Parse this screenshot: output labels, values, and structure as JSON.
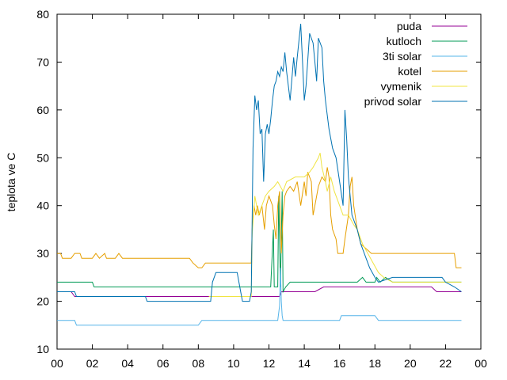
{
  "chart_data": {
    "type": "line",
    "title": "",
    "xlabel": "",
    "ylabel": "teplota ve C",
    "xlim": [
      0,
      24
    ],
    "ylim": [
      10,
      80
    ],
    "x_ticks": [
      "00",
      "02",
      "04",
      "06",
      "08",
      "10",
      "12",
      "14",
      "16",
      "18",
      "20",
      "22",
      "00"
    ],
    "y_ticks": [
      "10",
      "20",
      "30",
      "40",
      "50",
      "60",
      "70",
      "80"
    ],
    "grid": false,
    "legend_position": "top-right",
    "series": [
      {
        "name": "puda",
        "color": "#940094",
        "points": [
          [
            0,
            22
          ],
          [
            0.8,
            22
          ],
          [
            1,
            21
          ],
          [
            5,
            21
          ],
          [
            12.6,
            21
          ],
          [
            12.7,
            22
          ],
          [
            14,
            22
          ],
          [
            14.6,
            22
          ],
          [
            15.1,
            23
          ],
          [
            17,
            23
          ],
          [
            18,
            23
          ],
          [
            19,
            23
          ],
          [
            20,
            23
          ],
          [
            21.2,
            23
          ],
          [
            21.5,
            22
          ],
          [
            22,
            22
          ],
          [
            22.5,
            22
          ],
          [
            22.9,
            22
          ]
        ]
      },
      {
        "name": "kutloch",
        "color": "#009a55",
        "points": [
          [
            0,
            24
          ],
          [
            2,
            24
          ],
          [
            2.1,
            23
          ],
          [
            5,
            23
          ],
          [
            10,
            23
          ],
          [
            11,
            23
          ],
          [
            11.5,
            23
          ],
          [
            12.1,
            23
          ],
          [
            12.25,
            35
          ],
          [
            12.3,
            23
          ],
          [
            12.5,
            23
          ],
          [
            12.55,
            42
          ],
          [
            12.65,
            23
          ],
          [
            12.75,
            43
          ],
          [
            12.8,
            22
          ],
          [
            12.95,
            23
          ],
          [
            13.2,
            24
          ],
          [
            15,
            24
          ],
          [
            17,
            24
          ],
          [
            17.3,
            25
          ],
          [
            17.5,
            24
          ],
          [
            18,
            24
          ],
          [
            18.1,
            25
          ],
          [
            18.3,
            24
          ],
          [
            18.6,
            25
          ],
          [
            19,
            24
          ],
          [
            20,
            24
          ],
          [
            21,
            24
          ],
          [
            22,
            24
          ],
          [
            22.9,
            24
          ]
        ]
      },
      {
        "name": "3ti solar",
        "color": "#55b4e9",
        "points": [
          [
            0,
            16
          ],
          [
            1,
            16
          ],
          [
            1.1,
            15
          ],
          [
            5,
            15
          ],
          [
            8,
            15
          ],
          [
            8.2,
            16
          ],
          [
            12.5,
            16
          ],
          [
            12.6,
            19
          ],
          [
            12.65,
            27
          ],
          [
            12.7,
            20
          ],
          [
            12.75,
            17
          ],
          [
            12.8,
            16
          ],
          [
            15,
            16
          ],
          [
            16,
            16
          ],
          [
            16.1,
            17
          ],
          [
            18,
            17
          ],
          [
            18.2,
            16
          ],
          [
            22.9,
            16
          ]
        ]
      },
      {
        "name": "kotel",
        "color": "#e69f00",
        "points": [
          [
            0,
            30
          ],
          [
            0.2,
            30
          ],
          [
            0.3,
            29
          ],
          [
            0.8,
            29
          ],
          [
            1,
            30
          ],
          [
            1.3,
            30
          ],
          [
            1.4,
            29
          ],
          [
            2,
            29
          ],
          [
            2.2,
            30
          ],
          [
            2.4,
            29
          ],
          [
            2.7,
            30
          ],
          [
            2.8,
            29
          ],
          [
            3.3,
            29
          ],
          [
            3.5,
            30
          ],
          [
            3.7,
            29
          ],
          [
            5,
            29
          ],
          [
            7,
            29
          ],
          [
            7.5,
            29
          ],
          [
            7.7,
            28
          ],
          [
            8,
            27
          ],
          [
            8.2,
            27
          ],
          [
            8.4,
            28
          ],
          [
            11,
            28
          ],
          [
            11.05,
            35
          ],
          [
            11.15,
            40
          ],
          [
            11.25,
            38
          ],
          [
            11.35,
            40
          ],
          [
            11.45,
            38
          ],
          [
            11.6,
            40
          ],
          [
            11.75,
            35
          ],
          [
            11.85,
            40
          ],
          [
            12,
            42
          ],
          [
            12.2,
            40
          ],
          [
            12.3,
            36
          ],
          [
            12.4,
            33
          ],
          [
            12.5,
            40
          ],
          [
            12.6,
            43
          ],
          [
            12.7,
            30
          ],
          [
            12.8,
            38
          ],
          [
            12.9,
            42
          ],
          [
            13,
            43
          ],
          [
            13.2,
            44
          ],
          [
            13.4,
            43
          ],
          [
            13.6,
            45
          ],
          [
            13.8,
            40
          ],
          [
            14,
            45
          ],
          [
            14.1,
            42
          ],
          [
            14.2,
            47
          ],
          [
            14.4,
            45
          ],
          [
            14.5,
            38
          ],
          [
            14.6,
            40
          ],
          [
            14.8,
            44
          ],
          [
            15,
            46
          ],
          [
            15.2,
            45
          ],
          [
            15.3,
            48
          ],
          [
            15.4,
            46
          ],
          [
            15.5,
            38
          ],
          [
            15.6,
            35
          ],
          [
            15.8,
            33
          ],
          [
            15.9,
            30
          ],
          [
            16.2,
            30
          ],
          [
            16.3,
            33
          ],
          [
            16.5,
            38
          ],
          [
            16.6,
            44
          ],
          [
            16.7,
            46
          ],
          [
            16.8,
            40
          ],
          [
            17,
            35
          ],
          [
            17.2,
            32
          ],
          [
            17.5,
            31
          ],
          [
            17.8,
            30
          ],
          [
            20,
            30
          ],
          [
            21,
            30
          ],
          [
            22,
            30
          ],
          [
            22.5,
            30
          ],
          [
            22.6,
            27
          ],
          [
            22.9,
            27
          ]
        ]
      },
      {
        "name": "vymenik",
        "color": "#f0e442",
        "points": [
          [
            8.6,
            21
          ],
          [
            9.5,
            21
          ],
          [
            10.5,
            21
          ],
          [
            11,
            21
          ],
          [
            11.05,
            34
          ],
          [
            11.2,
            42
          ],
          [
            11.4,
            38
          ],
          [
            11.6,
            40
          ],
          [
            11.8,
            42
          ],
          [
            12,
            43
          ],
          [
            12.3,
            44
          ],
          [
            12.5,
            45
          ],
          [
            12.8,
            43
          ],
          [
            13,
            45
          ],
          [
            13.5,
            46
          ],
          [
            14,
            46
          ],
          [
            14.3,
            47
          ],
          [
            14.5,
            48
          ],
          [
            14.8,
            50
          ],
          [
            14.9,
            51
          ],
          [
            15,
            48
          ],
          [
            15.2,
            45
          ],
          [
            15.3,
            43
          ],
          [
            15.5,
            46
          ],
          [
            15.7,
            43
          ],
          [
            16,
            40
          ],
          [
            16.2,
            38
          ],
          [
            16.5,
            38
          ],
          [
            16.8,
            36
          ],
          [
            17,
            35
          ],
          [
            17.3,
            32
          ],
          [
            17.6,
            30
          ],
          [
            17.9,
            28
          ],
          [
            18.2,
            26
          ],
          [
            18.5,
            25
          ],
          [
            19,
            24
          ],
          [
            20,
            24
          ],
          [
            21,
            24
          ],
          [
            22,
            24
          ],
          [
            22.9,
            24
          ]
        ]
      },
      {
        "name": "privod solar",
        "color": "#0072b2",
        "points": [
          [
            0,
            22
          ],
          [
            1,
            22
          ],
          [
            1.1,
            21
          ],
          [
            5,
            21
          ],
          [
            5.1,
            20
          ],
          [
            8.7,
            20
          ],
          [
            8.8,
            24
          ],
          [
            9,
            26
          ],
          [
            10.2,
            26
          ],
          [
            10.4,
            22
          ],
          [
            10.5,
            20
          ],
          [
            10.9,
            20
          ],
          [
            11,
            22
          ],
          [
            11.1,
            52
          ],
          [
            11.2,
            63
          ],
          [
            11.3,
            60
          ],
          [
            11.4,
            62
          ],
          [
            11.5,
            55
          ],
          [
            11.6,
            56
          ],
          [
            11.7,
            45
          ],
          [
            11.8,
            55
          ],
          [
            11.9,
            57
          ],
          [
            12,
            55
          ],
          [
            12.1,
            58
          ],
          [
            12.2,
            62
          ],
          [
            12.3,
            65
          ],
          [
            12.4,
            66
          ],
          [
            12.5,
            68
          ],
          [
            12.6,
            67
          ],
          [
            12.7,
            69
          ],
          [
            12.8,
            68
          ],
          [
            12.9,
            72
          ],
          [
            13,
            68
          ],
          [
            13.1,
            65
          ],
          [
            13.2,
            62
          ],
          [
            13.4,
            71
          ],
          [
            13.5,
            67
          ],
          [
            13.6,
            71
          ],
          [
            13.8,
            78
          ],
          [
            13.9,
            70
          ],
          [
            14,
            62
          ],
          [
            14.1,
            65
          ],
          [
            14.3,
            76
          ],
          [
            14.5,
            74
          ],
          [
            14.6,
            70
          ],
          [
            14.7,
            66
          ],
          [
            14.8,
            75
          ],
          [
            15,
            73
          ],
          [
            15.1,
            66
          ],
          [
            15.2,
            62
          ],
          [
            15.4,
            56
          ],
          [
            15.6,
            52
          ],
          [
            15.8,
            50
          ],
          [
            16,
            45
          ],
          [
            16.2,
            40
          ],
          [
            16.3,
            60
          ],
          [
            16.4,
            54
          ],
          [
            16.5,
            46
          ],
          [
            16.7,
            38
          ],
          [
            17,
            35
          ],
          [
            17.2,
            32
          ],
          [
            17.5,
            29
          ],
          [
            17.7,
            27
          ],
          [
            18,
            25
          ],
          [
            18.2,
            24
          ],
          [
            19,
            25
          ],
          [
            20,
            25
          ],
          [
            21,
            25
          ],
          [
            21.8,
            25
          ],
          [
            22,
            24
          ],
          [
            22.5,
            23
          ],
          [
            22.9,
            22
          ]
        ]
      }
    ]
  }
}
